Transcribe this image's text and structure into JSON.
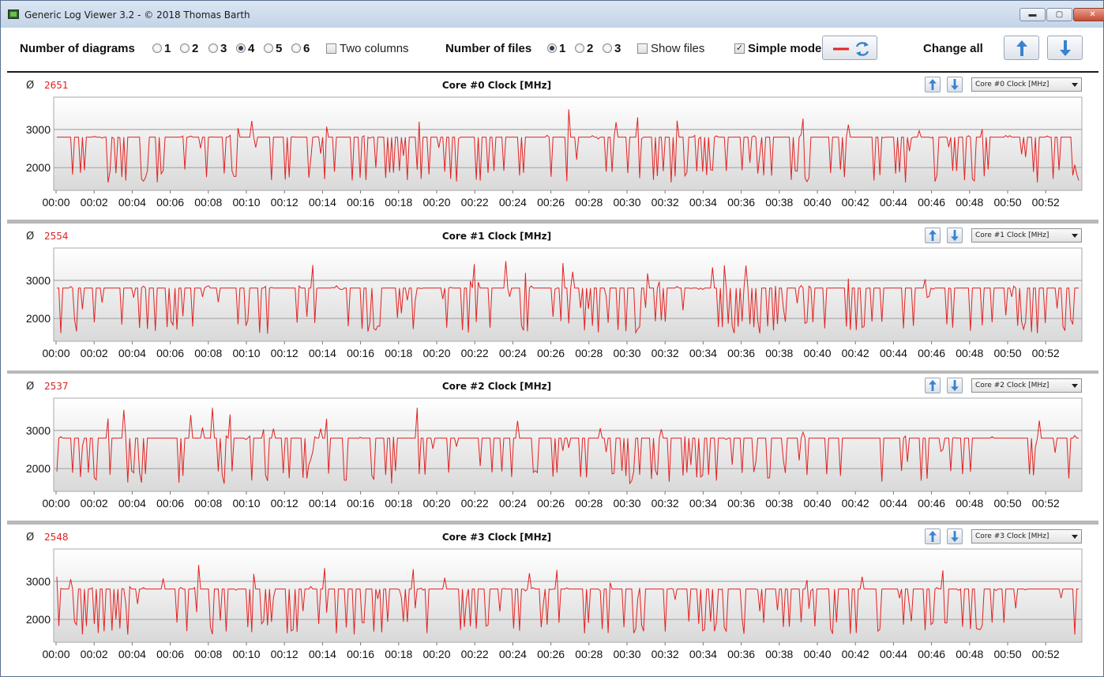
{
  "window": {
    "title": "Generic Log Viewer 3.2 - © 2018 Thomas Barth",
    "minimize_glyph": "▬",
    "maximize_glyph": "▢",
    "close_glyph": "✕"
  },
  "toolbar": {
    "diagrams_label": "Number of diagrams",
    "diagram_options": [
      "1",
      "2",
      "3",
      "4",
      "5",
      "6"
    ],
    "diagram_selected": "4",
    "two_columns_label": "Two columns",
    "two_columns_checked": false,
    "files_label": "Number of files",
    "file_options": [
      "1",
      "2",
      "3"
    ],
    "file_selected": "1",
    "show_files_label": "Show files",
    "show_files_checked": false,
    "simple_mode_label": "Simple mode",
    "simple_mode_checked": true,
    "check_glyph": "✓",
    "change_all_label": "Change all",
    "line_color": "#e32222",
    "refresh_color": "#2f7fc8",
    "arrow_color": "#3b82cf"
  },
  "time_ticks": [
    "00:00",
    "00:02",
    "00:04",
    "00:06",
    "00:08",
    "00:10",
    "00:12",
    "00:14",
    "00:16",
    "00:18",
    "00:20",
    "00:22",
    "00:24",
    "00:26",
    "00:28",
    "00:30",
    "00:32",
    "00:34",
    "00:36",
    "00:38",
    "00:40",
    "00:42",
    "00:44",
    "00:46",
    "00:48",
    "00:50",
    "00:52"
  ],
  "y_ticks": [
    "3000",
    "2000"
  ],
  "avg_symbol": "Ø",
  "panels": [
    {
      "title": "Core #0 Clock [MHz]",
      "average": "2651",
      "select_value": "Core #0 Clock [MHz]",
      "seed": 11
    },
    {
      "title": "Core #1 Clock [MHz]",
      "average": "2554",
      "select_value": "Core #1 Clock [MHz]",
      "seed": 23
    },
    {
      "title": "Core #2 Clock [MHz]",
      "average": "2537",
      "select_value": "Core #2 Clock [MHz]",
      "seed": 37
    },
    {
      "title": "Core #3 Clock [MHz]",
      "average": "2548",
      "select_value": "Core #3 Clock [MHz]",
      "seed": 53
    }
  ],
  "chart_data": [
    {
      "type": "line",
      "title": "Core #0 Clock [MHz]",
      "ylim": [
        1400,
        3850
      ],
      "x_unit": "mm:ss",
      "xlim": [
        "00:00",
        "00:53"
      ],
      "baseline": 2800,
      "low": 1600,
      "peak": 3600,
      "grid": true
    },
    {
      "type": "line",
      "title": "Core #1 Clock [MHz]",
      "ylim": [
        1400,
        3850
      ],
      "x_unit": "mm:ss",
      "xlim": [
        "00:00",
        "00:53"
      ],
      "baseline": 2800,
      "low": 1600,
      "peak": 3600,
      "grid": true
    },
    {
      "type": "line",
      "title": "Core #2 Clock [MHz]",
      "ylim": [
        1400,
        3850
      ],
      "x_unit": "mm:ss",
      "xlim": [
        "00:00",
        "00:53"
      ],
      "baseline": 2800,
      "low": 1600,
      "peak": 3600,
      "grid": true
    },
    {
      "type": "line",
      "title": "Core #3 Clock [MHz]",
      "ylim": [
        1400,
        3850
      ],
      "x_unit": "mm:ss",
      "xlim": [
        "00:00",
        "00:53"
      ],
      "baseline": 2800,
      "low": 1600,
      "peak": 3650,
      "grid": true
    }
  ]
}
